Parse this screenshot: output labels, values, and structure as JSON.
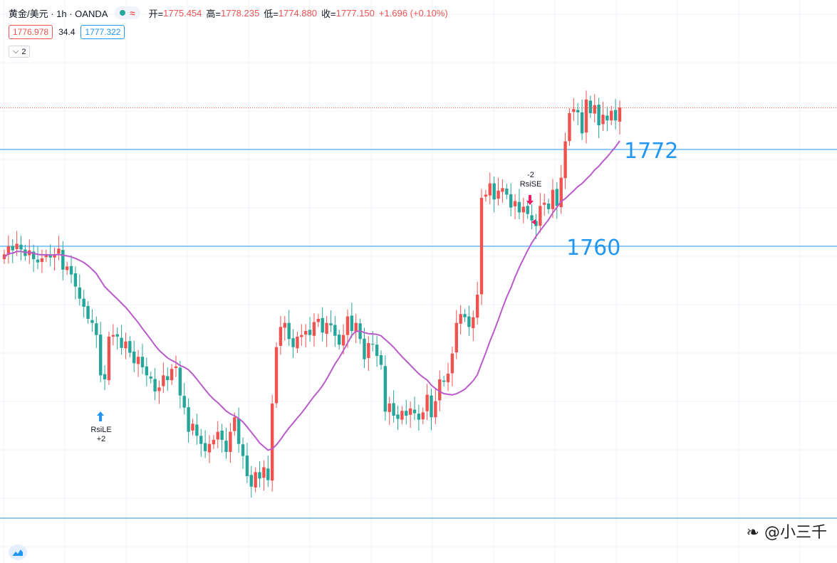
{
  "legend": {
    "symbol": "黄金/美元 · 1h · OANDA",
    "wave_glyph": "≈",
    "open_label": "开=",
    "open_value": "1775.454",
    "high_label": "高=",
    "high_value": "1778.235",
    "low_label": "低=",
    "low_value": "1774.880",
    "close_label": "收=",
    "close_value": "1777.150",
    "change": "+1.696 (+0.10%)"
  },
  "quote": {
    "bid": "1776.978",
    "spread": "34.4",
    "ask": "1777.322"
  },
  "indicator_count": "2",
  "levels": [
    {
      "label": "1772",
      "price": 1772
    },
    {
      "label": "1760",
      "price": 1760
    }
  ],
  "signals": {
    "long": {
      "line1": "RsiLE",
      "line2": "+2"
    },
    "short": {
      "line1": "-2",
      "line2": "RsiSE"
    }
  },
  "watermark": "@小三千",
  "colors": {
    "up": "#ef5350",
    "down": "#26a69a",
    "ma": "#b95bc9",
    "level": "#2196f3",
    "grid": "#f0f3fa"
  },
  "chart_data": {
    "type": "candlestick",
    "series_close": [
      1759.0,
      1760.0,
      1759.5,
      1760.3,
      1759.6,
      1758.8,
      1759.5,
      1758.4,
      1758.0,
      1758.5,
      1759.0,
      1758.6,
      1759.0,
      1759.7,
      1757.1,
      1757.5,
      1756.5,
      1755.0,
      1753.5,
      1752.5,
      1751.0,
      1750.5,
      1749.0,
      1744.0,
      1743.5,
      1748.8,
      1749.0,
      1748.8,
      1747.4,
      1748.2,
      1746.8,
      1745.5,
      1746.3,
      1745.0,
      1744.0,
      1743.6,
      1742.0,
      1742.5,
      1744.0,
      1743.4,
      1744.8,
      1745.1,
      1741.5,
      1740.0,
      1737.0,
      1738.0,
      1736.5,
      1735.5,
      1734.6,
      1735.5,
      1736.0,
      1737.0,
      1736.0,
      1734.5,
      1737.0,
      1738.8,
      1735.5,
      1734.0,
      1731.5,
      1730.2,
      1732.0,
      1731.2,
      1732.6,
      1731.0,
      1740.5,
      1747.5,
      1750.0,
      1750.5,
      1748.5,
      1747.5,
      1748.8,
      1749.0,
      1749.5,
      1749.0,
      1750.6,
      1751.0,
      1749.3,
      1750.5,
      1750.2,
      1748.9,
      1747.8,
      1749.0,
      1751.3,
      1749.5,
      1750.5,
      1748.5,
      1746.0,
      1748.0,
      1747.8,
      1746.4,
      1745.3,
      1739.5,
      1740.5,
      1739.0,
      1738.6,
      1739.6,
      1739.0,
      1739.9,
      1739.3,
      1738.5,
      1739.4,
      1741.6,
      1738.8,
      1740.8,
      1743.5,
      1743.2,
      1744.2,
      1746.7,
      1750.5,
      1751.6,
      1751.2,
      1750.0,
      1751.2,
      1754.0,
      1766.0,
      1766.4,
      1767.8,
      1765.8,
      1766.9,
      1767.2,
      1766.4,
      1764.8,
      1765.6,
      1764.2,
      1764.9,
      1764.0,
      1763.2,
      1762.5,
      1765.0,
      1765.4,
      1764.6,
      1767.0,
      1765.0,
      1768.5,
      1773.0,
      1776.5,
      1777.0,
      1776.6,
      1774.0,
      1778.2,
      1776.5,
      1777.5,
      1775.0,
      1776.3,
      1775.6,
      1776.8,
      1775.6,
      1777.2
    ],
    "series_ma_trend": "moving-average line (purple)",
    "ylim": [
      1728,
      1782
    ],
    "price_levels": [
      1772,
      1760
    ],
    "last_price": 1777.15
  }
}
